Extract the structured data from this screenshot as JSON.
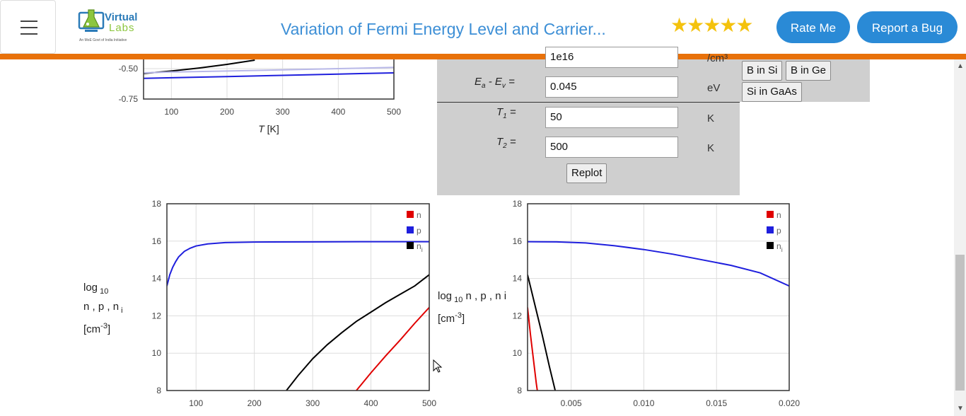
{
  "header": {
    "logo_name_1": "Virtual",
    "logo_name_2": "Labs",
    "logo_tagline": "An MoE Govt of India Initiative",
    "title": "Variation of Fermi Energy Level and Carrier...",
    "rating_stars": 5,
    "rate_label": "Rate Me",
    "bug_label": "Report a Bug",
    "menu_icon": "hamburger-menu-icon"
  },
  "form": {
    "top_partial_value": "1e16",
    "top_partial_unit": "/cm³",
    "ea_label": "E_a - E_v =",
    "ea_value": "0.045",
    "ea_unit": "eV",
    "t1_label": "T_1 =",
    "t1_value": "50",
    "t1_unit": "K",
    "t2_label": "T_2 =",
    "t2_value": "500",
    "t2_unit": "K",
    "replot_label": "Replot",
    "presets": [
      "B in Si",
      "B in Ge",
      "Si in GaAs"
    ]
  },
  "colors": {
    "accent_orange": "#e8710a",
    "button_blue": "#2a8ad6",
    "title_blue": "#3d8fd6",
    "n_red": "#e00000",
    "p_blue": "#1f1fdd",
    "ni_black": "#000000"
  },
  "chart_data": [
    {
      "type": "line",
      "title": "",
      "xlabel": "T [K]",
      "ylabel": "",
      "xlim": [
        50,
        500
      ],
      "ylim_visible": [
        -0.75,
        -0.4
      ],
      "xticks": [
        100,
        200,
        300,
        400,
        500
      ],
      "yticks": [
        "-0.50",
        "-0.75"
      ],
      "note": "partially scrolled out of view; only lower portion visible",
      "series": [
        {
          "color": "#000000",
          "x": [
            50,
            100,
            150,
            200,
            250
          ],
          "y": [
            -0.54,
            -0.52,
            -0.495,
            -0.465,
            -0.43
          ]
        },
        {
          "color": "#b8b8e8",
          "x": [
            50,
            100,
            200,
            300,
            400,
            500
          ],
          "y": [
            -0.535,
            -0.528,
            -0.52,
            -0.51,
            -0.5,
            -0.49
          ]
        },
        {
          "color": "#1f1fdd",
          "x": [
            50,
            100,
            200,
            300,
            400,
            500
          ],
          "y": [
            -0.58,
            -0.575,
            -0.565,
            -0.555,
            -0.545,
            -0.535
          ]
        }
      ]
    },
    {
      "type": "line",
      "title": "",
      "xlabel": "",
      "ylabel_parts": {
        "log": "log",
        "sub": "10",
        "vars": "n , p , n",
        "vars_sub": "i",
        "unit_base": "[cm",
        "unit_sup": "-3",
        "unit_end": "]"
      },
      "xlim": [
        50,
        500
      ],
      "ylim": [
        8,
        18
      ],
      "xticks": [
        100,
        200,
        300,
        400,
        500
      ],
      "yticks": [
        8,
        10,
        12,
        14,
        16,
        18
      ],
      "legend": {
        "placement": "top-right",
        "entries": [
          "n",
          "p",
          "n_i"
        ]
      },
      "series": [
        {
          "name": "n",
          "color": "#e00000",
          "x": [
            375,
            400,
            425,
            450,
            475,
            500
          ],
          "y": [
            8.0,
            8.95,
            9.85,
            10.7,
            11.6,
            12.45
          ]
        },
        {
          "name": "p",
          "color": "#1f1fdd",
          "x": [
            50,
            55,
            60,
            65,
            70,
            80,
            90,
            100,
            120,
            150,
            200,
            300,
            400,
            500
          ],
          "y": [
            13.6,
            14.2,
            14.6,
            14.9,
            15.15,
            15.45,
            15.62,
            15.74,
            15.85,
            15.92,
            15.95,
            15.96,
            15.97,
            15.97
          ]
        },
        {
          "name": "n_i",
          "color": "#000000",
          "x": [
            255,
            275,
            300,
            325,
            350,
            375,
            400,
            425,
            450,
            475,
            500
          ],
          "y": [
            8.0,
            8.8,
            9.7,
            10.45,
            11.1,
            11.7,
            12.2,
            12.7,
            13.15,
            13.6,
            14.2
          ]
        }
      ]
    },
    {
      "type": "line",
      "title": "",
      "xlabel": "",
      "ylabel_parts": {
        "log": "log",
        "sub": "10",
        "vars": "n , p , n i",
        "unit_base": "[cm",
        "unit_sup": "-3",
        "unit_end": "]"
      },
      "xlim": [
        0.002,
        0.02
      ],
      "ylim": [
        8,
        18
      ],
      "xticks": [
        "0.005",
        "0.010",
        "0.015",
        "0.020"
      ],
      "yticks": [
        8,
        10,
        12,
        14,
        16,
        18
      ],
      "legend": {
        "placement": "top-right",
        "entries": [
          "n",
          "p",
          "n_i"
        ]
      },
      "series": [
        {
          "name": "n",
          "color": "#e00000",
          "x": [
            0.002,
            0.0022,
            0.0024,
            0.0026,
            0.00267
          ],
          "y": [
            12.45,
            11.0,
            9.7,
            8.4,
            8.0
          ]
        },
        {
          "name": "p",
          "color": "#1f1fdd",
          "x": [
            0.002,
            0.004,
            0.006,
            0.008,
            0.01,
            0.012,
            0.014,
            0.016,
            0.018,
            0.02
          ],
          "y": [
            15.97,
            15.96,
            15.9,
            15.75,
            15.55,
            15.3,
            15.0,
            14.7,
            14.3,
            13.6
          ]
        },
        {
          "name": "n_i",
          "color": "#000000",
          "x": [
            0.002,
            0.0025,
            0.003,
            0.0035,
            0.0039
          ],
          "y": [
            14.2,
            12.6,
            11.0,
            9.3,
            8.0
          ]
        }
      ]
    }
  ]
}
